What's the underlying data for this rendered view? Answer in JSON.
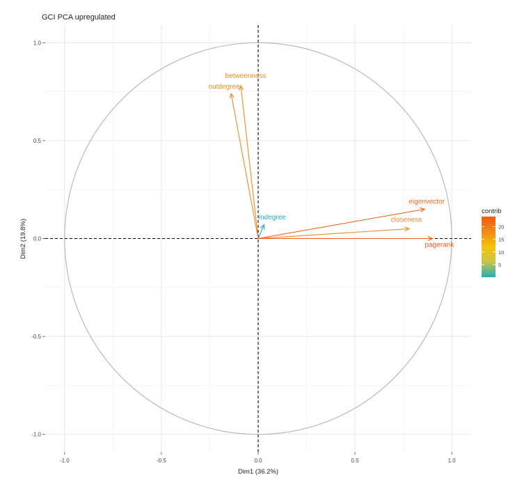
{
  "chart_data": {
    "type": "pca-variable-correlation-circle",
    "title": "GCI PCA upregulated",
    "xlabel": "Dim1 (36.2%)",
    "ylabel": "Dim2 (19.8%)",
    "xlim": [
      -1.1,
      1.1
    ],
    "ylim": [
      -1.09,
      1.09
    ],
    "xticks": [
      -1.0,
      -0.5,
      0.0,
      0.5,
      1.0
    ],
    "yticks": [
      -1.0,
      -0.5,
      0.0,
      0.5,
      1.0
    ],
    "xtick_labels": [
      "-1.0",
      "-0.5",
      "0.0",
      "0.5",
      "1.0"
    ],
    "ytick_labels": [
      "-1.0",
      "-0.5",
      "0.0",
      "0.5",
      "1.0"
    ],
    "grid": true,
    "variables": [
      {
        "name": "betweenness",
        "x": -0.09,
        "y": 0.78,
        "contrib": 19,
        "color": "#f28a1e"
      },
      {
        "name": "outdegree",
        "x": -0.14,
        "y": 0.74,
        "contrib": 16,
        "color": "#ef8a22"
      },
      {
        "name": "indegree",
        "x": 0.03,
        "y": 0.07,
        "contrib": 1,
        "color": "#1fb0b8"
      },
      {
        "name": "eigenvector",
        "x": 0.86,
        "y": 0.15,
        "contrib": 22,
        "color": "#f46a1c"
      },
      {
        "name": "closeness",
        "x": 0.78,
        "y": 0.05,
        "contrib": 19,
        "color": "#f08a25"
      },
      {
        "name": "pagerank",
        "x": 0.9,
        "y": 0.0,
        "contrib": 24,
        "color": "#f45a1c"
      }
    ],
    "legend": {
      "title": "contrib",
      "position": "right",
      "ticks": [
        5,
        10,
        15,
        20
      ],
      "range": [
        0,
        24
      ],
      "colors": [
        "#1fb0b8",
        "#c6c44a",
        "#f2c40c",
        "#f08a18",
        "#f45a0c"
      ]
    }
  }
}
